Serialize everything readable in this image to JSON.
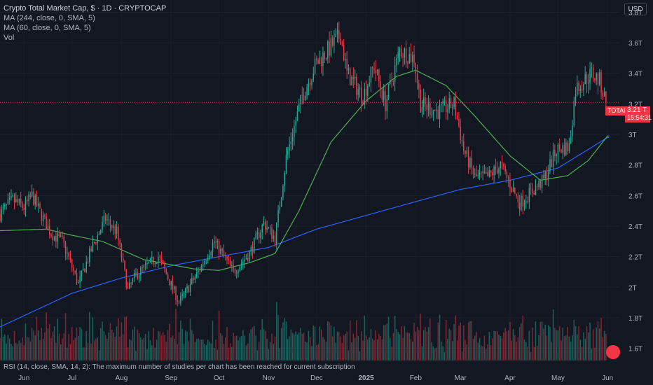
{
  "legend": {
    "title": "Crypto Total Market Cap, $ · 1D · CRYPTOCAP",
    "ma1": "MA (244, close, 0, SMA, 5)",
    "ma2": "MA (60, close, 0, SMA, 5)",
    "vol": "Vol"
  },
  "currency_button": "USD",
  "rsi_note": "RSI (14, close, SMA, 14, 2): The maximum number of studies per chart has been reached for current subscription",
  "last_price": {
    "symbol": "TOTAL",
    "value": "3.21 T",
    "countdown": "15:54:31"
  },
  "colors": {
    "up": "#22ab94",
    "down": "#f23645",
    "ma244": "#2962ff",
    "ma60": "#4caf50",
    "background": "#131722"
  },
  "chart_data": {
    "type": "candlestick",
    "title": "Crypto Total Market Cap, $ · 1D · CRYPTOCAP",
    "y_ticks": [
      "3.8T",
      "3.6T",
      "3.4T",
      "3.2T",
      "3T",
      "2.8T",
      "2.6T",
      "2.4T",
      "2.2T",
      "2T",
      "1.8T",
      "1.6T"
    ],
    "y_tick_values": [
      3.8,
      3.6,
      3.4,
      3.2,
      3.0,
      2.8,
      2.6,
      2.4,
      2.2,
      2.0,
      1.8,
      1.6
    ],
    "x_ticks": [
      "Jun",
      "Jul",
      "Aug",
      "Sep",
      "Oct",
      "Nov",
      "Dec",
      "2025",
      "Feb",
      "Mar",
      "Apr",
      "May",
      "Jun"
    ],
    "x_tick_dates": [
      "2024-06-01",
      "2024-07-01",
      "2024-08-01",
      "2024-09-01",
      "2024-10-01",
      "2024-11-01",
      "2024-12-01",
      "2025-01-01",
      "2025-02-01",
      "2025-03-01",
      "2025-04-01",
      "2025-05-01",
      "2025-06-01"
    ],
    "y_range": [
      1.52,
      3.88
    ],
    "x_range": [
      "2024-05-17",
      "2025-06-03"
    ],
    "price_anchors": [
      [
        "2024-05-17",
        2.48
      ],
      [
        "2024-05-25",
        2.57
      ],
      [
        "2024-06-01",
        2.52
      ],
      [
        "2024-06-06",
        2.6
      ],
      [
        "2024-06-12",
        2.47
      ],
      [
        "2024-06-18",
        2.35
      ],
      [
        "2024-06-25",
        2.3
      ],
      [
        "2024-07-05",
        2.02
      ],
      [
        "2024-07-14",
        2.27
      ],
      [
        "2024-07-22",
        2.45
      ],
      [
        "2024-07-29",
        2.36
      ],
      [
        "2024-08-05",
        1.98
      ],
      [
        "2024-08-10",
        2.08
      ],
      [
        "2024-08-24",
        2.2
      ],
      [
        "2024-09-06",
        1.9
      ],
      [
        "2024-09-18",
        2.1
      ],
      [
        "2024-09-28",
        2.3
      ],
      [
        "2024-10-10",
        2.1
      ],
      [
        "2024-10-20",
        2.22
      ],
      [
        "2024-10-29",
        2.42
      ],
      [
        "2024-11-05",
        2.32
      ],
      [
        "2024-11-12",
        2.85
      ],
      [
        "2024-11-22",
        3.25
      ],
      [
        "2024-11-30",
        3.45
      ],
      [
        "2024-12-08",
        3.55
      ],
      [
        "2024-12-16",
        3.65
      ],
      [
        "2024-12-20",
        3.4
      ],
      [
        "2024-12-30",
        3.25
      ],
      [
        "2025-01-06",
        3.45
      ],
      [
        "2025-01-13",
        3.2
      ],
      [
        "2025-01-22",
        3.55
      ],
      [
        "2025-01-31",
        3.5
      ],
      [
        "2025-02-04",
        3.2
      ],
      [
        "2025-02-15",
        3.15
      ],
      [
        "2025-02-25",
        3.2
      ],
      [
        "2025-03-03",
        2.9
      ],
      [
        "2025-03-10",
        2.72
      ],
      [
        "2025-03-18",
        2.72
      ],
      [
        "2025-03-26",
        2.8
      ],
      [
        "2025-04-07",
        2.55
      ],
      [
        "2025-04-10",
        2.58
      ],
      [
        "2025-04-22",
        2.7
      ],
      [
        "2025-04-30",
        2.9
      ],
      [
        "2025-05-08",
        2.92
      ],
      [
        "2025-05-12",
        3.3
      ],
      [
        "2025-05-22",
        3.4
      ],
      [
        "2025-05-27",
        3.35
      ],
      [
        "2025-05-31",
        3.21
      ]
    ],
    "ma244_anchors": [
      [
        "2024-05-17",
        1.74
      ],
      [
        "2024-07-01",
        1.96
      ],
      [
        "2024-08-01",
        2.06
      ],
      [
        "2024-09-01",
        2.14
      ],
      [
        "2024-10-01",
        2.2
      ],
      [
        "2024-11-01",
        2.26
      ],
      [
        "2024-12-01",
        2.38
      ],
      [
        "2025-01-01",
        2.47
      ],
      [
        "2025-02-01",
        2.56
      ],
      [
        "2025-03-01",
        2.64
      ],
      [
        "2025-04-01",
        2.7
      ],
      [
        "2025-05-01",
        2.78
      ],
      [
        "2025-06-01",
        2.98
      ]
    ],
    "ma60_anchors": [
      [
        "2024-05-17",
        2.37
      ],
      [
        "2024-06-15",
        2.38
      ],
      [
        "2024-07-01",
        2.34
      ],
      [
        "2024-07-20",
        2.3
      ],
      [
        "2024-08-15",
        2.18
      ],
      [
        "2024-09-15",
        2.12
      ],
      [
        "2024-10-01",
        2.11
      ],
      [
        "2024-10-20",
        2.16
      ],
      [
        "2024-11-05",
        2.22
      ],
      [
        "2024-11-20",
        2.5
      ],
      [
        "2024-12-10",
        2.95
      ],
      [
        "2025-01-01",
        3.22
      ],
      [
        "2025-01-20",
        3.38
      ],
      [
        "2025-02-01",
        3.42
      ],
      [
        "2025-02-20",
        3.32
      ],
      [
        "2025-03-10",
        3.12
      ],
      [
        "2025-04-01",
        2.86
      ],
      [
        "2025-04-20",
        2.7
      ],
      [
        "2025-05-07",
        2.73
      ],
      [
        "2025-05-20",
        2.83
      ],
      [
        "2025-06-01",
        2.99
      ]
    ],
    "last_value": 3.21,
    "volume_shown": true
  }
}
